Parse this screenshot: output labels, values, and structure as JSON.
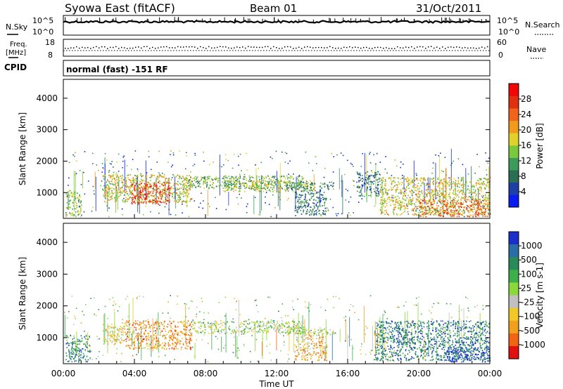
{
  "header": {
    "station": "Syowa East (fitACF)",
    "beam": "Beam 01",
    "date": "31/Oct/2011"
  },
  "strips": {
    "nsky_label": "N.Sky",
    "nsearch_label": "N.Search",
    "nsky_ticks": [
      "10^5",
      "10^0"
    ],
    "freq_label_1": "Freq.",
    "freq_label_2": "[MHz]",
    "freq_ticks": [
      "18",
      "8"
    ],
    "nave_label": "Nave",
    "nave_ticks": [
      "60",
      "0"
    ],
    "cpid_label": "CPID",
    "cpid_text": "normal (fast) -151 RF"
  },
  "chart_data": [
    {
      "type": "heatmap",
      "name": "power",
      "ylabel": "Slant Range [km]",
      "yticks": [
        1000,
        2000,
        3000,
        4000
      ],
      "ylim": [
        180,
        4600
      ],
      "xlim": [
        0,
        24
      ],
      "colorbar": {
        "label": "Power [dB]",
        "ticks": [
          "4",
          "8",
          "12",
          "16",
          "20",
          "24",
          "28"
        ],
        "colors": [
          "#0a1cf0",
          "#1e3fa8",
          "#2a6e54",
          "#3c9a5a",
          "#7cc83c",
          "#e0d22a",
          "#f09a1e",
          "#f0641e",
          "#e03010",
          "#f00808"
        ]
      },
      "regions": [
        {
          "t0": 0.1,
          "t1": 1.0,
          "r0": 250,
          "r1": 1100,
          "level": 0.45
        },
        {
          "t0": 2.2,
          "t1": 7.2,
          "r0": 700,
          "r1": 1600,
          "level": 0.55
        },
        {
          "t0": 3.8,
          "t1": 6.0,
          "r0": 650,
          "r1": 1350,
          "level": 0.85
        },
        {
          "t0": 6.5,
          "t1": 13.5,
          "r0": 1150,
          "r1": 1550,
          "level": 0.4
        },
        {
          "t0": 9.0,
          "t1": 14.0,
          "r0": 1050,
          "r1": 1400,
          "level": 0.5
        },
        {
          "t0": 12.5,
          "t1": 15.2,
          "r0": 1100,
          "r1": 1350,
          "level": 0.3
        },
        {
          "t0": 13.0,
          "t1": 14.8,
          "r0": 300,
          "r1": 1100,
          "level": 0.25
        },
        {
          "t0": 16.5,
          "t1": 17.8,
          "r0": 900,
          "r1": 1700,
          "level": 0.25
        },
        {
          "t0": 17.8,
          "t1": 24.0,
          "r0": 300,
          "r1": 1500,
          "level": 0.55
        },
        {
          "t0": 20.0,
          "t1": 24.0,
          "r0": 250,
          "r1": 800,
          "level": 0.75
        }
      ]
    },
    {
      "type": "heatmap",
      "name": "velocity",
      "ylabel": "Slant Range [km]",
      "yticks": [
        1000,
        2000,
        3000,
        4000
      ],
      "ylim": [
        180,
        4600
      ],
      "xlim": [
        0,
        24
      ],
      "xticks": [
        "00:00",
        "04:00",
        "08:00",
        "12:00",
        "16:00",
        "20:00",
        "00:00"
      ],
      "xlabel": "Time UT",
      "colorbar": {
        "label": "Velocity [m s-1]",
        "ticks": [
          "1000",
          "500",
          "100",
          "25",
          "-25",
          "-100",
          "-500",
          "-1000"
        ],
        "colors": [
          "#1a30c8",
          "#2a6ea8",
          "#2a8a5a",
          "#3cae4a",
          "#8ad83c",
          "#c0c0c0",
          "#f0c828",
          "#f0a01e",
          "#f06414",
          "#e01010"
        ]
      },
      "regions": [
        {
          "t0": 0.1,
          "t1": 1.5,
          "r0": 250,
          "r1": 1100,
          "level": 0.25
        },
        {
          "t0": 2.2,
          "t1": 3.5,
          "r0": 800,
          "r1": 1500,
          "level": 0.6
        },
        {
          "t0": 3.5,
          "t1": 7.2,
          "r0": 650,
          "r1": 1550,
          "level": 0.75
        },
        {
          "t0": 7.2,
          "t1": 13.5,
          "r0": 1150,
          "r1": 1550,
          "level": 0.5
        },
        {
          "t0": 12.5,
          "t1": 15.2,
          "r0": 1100,
          "r1": 1350,
          "level": 0.5
        },
        {
          "t0": 13.0,
          "t1": 14.8,
          "r0": 300,
          "r1": 1100,
          "level": 0.7
        },
        {
          "t0": 17.5,
          "t1": 24.0,
          "r0": 300,
          "r1": 1550,
          "level": 0.2
        },
        {
          "t0": 21.5,
          "t1": 24.0,
          "r0": 250,
          "r1": 700,
          "level": 0.05
        }
      ]
    }
  ]
}
